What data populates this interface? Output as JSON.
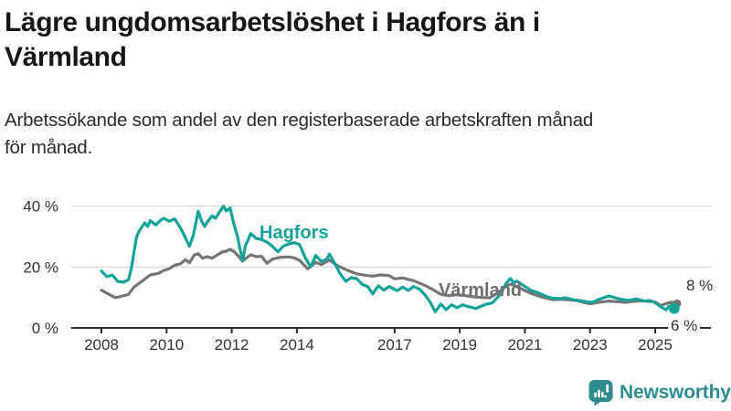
{
  "header": {
    "title_lines": [
      "Lägre ungdomsarbetslöshet i Hagfors än i",
      "Värmland"
    ],
    "subtitle_lines": [
      "Arbetssökande som andel av den registerbaserade arbetskraften månad",
      "för månad."
    ]
  },
  "branding": {
    "logo_text": "Newsworthy",
    "logo_icon": "newsworthy-speech-bubble-bars-icon",
    "logo_color": "#2f8c8e"
  },
  "colors": {
    "hagfors": "#14a396",
    "varmland": "#757575",
    "axis": "#2b2b2b",
    "grid": "#dcdcdc",
    "tick_text": "#333333",
    "title_text": "#161616"
  },
  "chart_data": {
    "type": "line",
    "title": "Lägre ungdomsarbetslöshet i Hagfors än i Värmland",
    "subtitle": "Arbetssökande som andel av den registerbaserade arbetskraften månad för månad.",
    "unit": "%",
    "legend_position": "inline-labels-on-lines",
    "x_axis": {
      "range": [
        2008,
        2025.7
      ],
      "tick_years": [
        2008,
        2010,
        2012,
        2014,
        2017,
        2019,
        2021,
        2023,
        2025
      ],
      "tick_labels": [
        "2008",
        "2010",
        "2012",
        "2014",
        "2017",
        "2019",
        "2021",
        "2023",
        "2025"
      ]
    },
    "y_axis": {
      "range": [
        0,
        42
      ],
      "ticks": [
        0,
        20,
        40
      ],
      "tick_labels": [
        "0 %",
        "20 %",
        "40 %"
      ],
      "grid": true
    },
    "series": [
      {
        "name": "Värmland",
        "color": "#757575",
        "end_label": "8 %",
        "end_value": 8,
        "points": [
          [
            2008.0,
            12.4
          ],
          [
            2008.17,
            11.4
          ],
          [
            2008.42,
            9.9
          ],
          [
            2008.58,
            10.3
          ],
          [
            2008.83,
            11.0
          ],
          [
            2009.0,
            13.4
          ],
          [
            2009.25,
            15.4
          ],
          [
            2009.5,
            17.4
          ],
          [
            2009.75,
            17.9
          ],
          [
            2009.92,
            18.9
          ],
          [
            2010.08,
            19.4
          ],
          [
            2010.25,
            20.6
          ],
          [
            2010.42,
            21.0
          ],
          [
            2010.58,
            22.4
          ],
          [
            2010.7,
            21.4
          ],
          [
            2010.85,
            23.9
          ],
          [
            2010.97,
            24.4
          ],
          [
            2011.1,
            22.9
          ],
          [
            2011.25,
            23.4
          ],
          [
            2011.4,
            22.9
          ],
          [
            2011.55,
            23.9
          ],
          [
            2011.7,
            24.9
          ],
          [
            2011.83,
            25.2
          ],
          [
            2011.95,
            25.8
          ],
          [
            2012.08,
            25.0
          ],
          [
            2012.33,
            22.0
          ],
          [
            2012.58,
            24.0
          ],
          [
            2012.75,
            23.4
          ],
          [
            2012.92,
            23.5
          ],
          [
            2013.08,
            21.2
          ],
          [
            2013.25,
            22.6
          ],
          [
            2013.5,
            23.2
          ],
          [
            2013.75,
            23.3
          ],
          [
            2013.92,
            23.0
          ],
          [
            2014.08,
            22.2
          ],
          [
            2014.33,
            19.4
          ],
          [
            2014.58,
            21.5
          ],
          [
            2014.75,
            20.8
          ],
          [
            2015.0,
            22.3
          ],
          [
            2015.25,
            20.4
          ],
          [
            2015.58,
            18.8
          ],
          [
            2015.83,
            17.8
          ],
          [
            2016.08,
            17.3
          ],
          [
            2016.33,
            17.0
          ],
          [
            2016.58,
            17.4
          ],
          [
            2016.83,
            17.2
          ],
          [
            2017.0,
            16.1
          ],
          [
            2017.25,
            16.4
          ],
          [
            2017.58,
            15.5
          ],
          [
            2017.92,
            14.0
          ],
          [
            2018.17,
            12.6
          ],
          [
            2018.42,
            11.0
          ],
          [
            2018.67,
            10.6
          ],
          [
            2018.92,
            10.9
          ],
          [
            2019.17,
            10.6
          ],
          [
            2019.42,
            10.2
          ],
          [
            2019.67,
            10.0
          ],
          [
            2019.92,
            9.9
          ],
          [
            2020.17,
            11.5
          ],
          [
            2020.42,
            13.8
          ],
          [
            2020.58,
            14.4
          ],
          [
            2020.83,
            13.2
          ],
          [
            2021.0,
            12.2
          ],
          [
            2021.25,
            11.1
          ],
          [
            2021.5,
            10.2
          ],
          [
            2021.83,
            9.3
          ],
          [
            2022.08,
            9.4
          ],
          [
            2022.33,
            9.2
          ],
          [
            2022.58,
            9.0
          ],
          [
            2022.83,
            8.3
          ],
          [
            2023.0,
            7.9
          ],
          [
            2023.25,
            8.4
          ],
          [
            2023.58,
            8.8
          ],
          [
            2023.83,
            8.6
          ],
          [
            2024.08,
            8.4
          ],
          [
            2024.33,
            8.7
          ],
          [
            2024.58,
            8.9
          ],
          [
            2024.83,
            8.7
          ],
          [
            2025.0,
            8.5
          ],
          [
            2025.17,
            7.3
          ],
          [
            2025.33,
            8.0
          ],
          [
            2025.5,
            8.4
          ],
          [
            2025.67,
            8.0
          ]
        ]
      },
      {
        "name": "Hagfors",
        "color": "#14a396",
        "end_label": "6 %",
        "end_value": 6,
        "points": [
          [
            2008.0,
            18.7
          ],
          [
            2008.17,
            16.8
          ],
          [
            2008.33,
            17.4
          ],
          [
            2008.5,
            15.3
          ],
          [
            2008.67,
            15.0
          ],
          [
            2008.83,
            15.8
          ],
          [
            2008.92,
            19.5
          ],
          [
            2009.0,
            25.0
          ],
          [
            2009.08,
            30.0
          ],
          [
            2009.17,
            32.0
          ],
          [
            2009.33,
            34.5
          ],
          [
            2009.42,
            33.3
          ],
          [
            2009.5,
            35.2
          ],
          [
            2009.67,
            33.8
          ],
          [
            2009.83,
            35.5
          ],
          [
            2009.92,
            36.0
          ],
          [
            2010.08,
            35.0
          ],
          [
            2010.25,
            35.8
          ],
          [
            2010.42,
            33.0
          ],
          [
            2010.58,
            29.5
          ],
          [
            2010.7,
            26.8
          ],
          [
            2010.83,
            30.8
          ],
          [
            2010.97,
            38.3
          ],
          [
            2011.08,
            35.0
          ],
          [
            2011.17,
            33.3
          ],
          [
            2011.25,
            34.8
          ],
          [
            2011.4,
            36.8
          ],
          [
            2011.5,
            36.0
          ],
          [
            2011.62,
            38.0
          ],
          [
            2011.75,
            40.0
          ],
          [
            2011.83,
            38.4
          ],
          [
            2011.95,
            39.4
          ],
          [
            2012.08,
            33.5
          ],
          [
            2012.17,
            30.3
          ],
          [
            2012.33,
            22.0
          ],
          [
            2012.42,
            27.0
          ],
          [
            2012.5,
            28.8
          ],
          [
            2012.58,
            31.0
          ],
          [
            2012.75,
            29.4
          ],
          [
            2012.92,
            29.0
          ],
          [
            2013.08,
            28.2
          ],
          [
            2013.25,
            26.8
          ],
          [
            2013.42,
            25.0
          ],
          [
            2013.58,
            26.8
          ],
          [
            2013.75,
            27.6
          ],
          [
            2013.92,
            28.0
          ],
          [
            2014.08,
            27.4
          ],
          [
            2014.25,
            23.2
          ],
          [
            2014.42,
            20.0
          ],
          [
            2014.58,
            23.8
          ],
          [
            2014.75,
            21.8
          ],
          [
            2014.92,
            22.6
          ],
          [
            2015.0,
            24.3
          ],
          [
            2015.17,
            21.0
          ],
          [
            2015.33,
            17.8
          ],
          [
            2015.5,
            15.3
          ],
          [
            2015.67,
            16.5
          ],
          [
            2015.83,
            16.2
          ],
          [
            2016.0,
            14.3
          ],
          [
            2016.17,
            13.6
          ],
          [
            2016.33,
            11.2
          ],
          [
            2016.5,
            13.8
          ],
          [
            2016.67,
            12.4
          ],
          [
            2016.83,
            13.6
          ],
          [
            2017.08,
            12.2
          ],
          [
            2017.25,
            13.4
          ],
          [
            2017.42,
            12.3
          ],
          [
            2017.58,
            13.6
          ],
          [
            2017.75,
            12.8
          ],
          [
            2017.92,
            11.0
          ],
          [
            2018.08,
            8.6
          ],
          [
            2018.25,
            5.3
          ],
          [
            2018.42,
            7.8
          ],
          [
            2018.58,
            6.0
          ],
          [
            2018.75,
            7.6
          ],
          [
            2018.92,
            6.6
          ],
          [
            2019.08,
            7.6
          ],
          [
            2019.25,
            7.0
          ],
          [
            2019.5,
            6.4
          ],
          [
            2019.67,
            7.2
          ],
          [
            2019.83,
            7.8
          ],
          [
            2020.0,
            8.2
          ],
          [
            2020.25,
            11.0
          ],
          [
            2020.42,
            14.6
          ],
          [
            2020.55,
            16.2
          ],
          [
            2020.67,
            14.8
          ],
          [
            2020.75,
            15.4
          ],
          [
            2020.92,
            14.2
          ],
          [
            2021.0,
            13.6
          ],
          [
            2021.17,
            12.4
          ],
          [
            2021.42,
            11.5
          ],
          [
            2021.67,
            10.3
          ],
          [
            2021.83,
            9.8
          ],
          [
            2022.08,
            9.6
          ],
          [
            2022.25,
            9.9
          ],
          [
            2022.5,
            9.2
          ],
          [
            2022.75,
            8.9
          ],
          [
            2022.92,
            8.5
          ],
          [
            2023.08,
            8.4
          ],
          [
            2023.25,
            9.3
          ],
          [
            2023.42,
            9.9
          ],
          [
            2023.58,
            10.5
          ],
          [
            2023.83,
            9.7
          ],
          [
            2024.0,
            9.3
          ],
          [
            2024.17,
            9.0
          ],
          [
            2024.42,
            9.5
          ],
          [
            2024.67,
            8.8
          ],
          [
            2024.83,
            9.0
          ],
          [
            2025.0,
            8.3
          ],
          [
            2025.17,
            6.9
          ],
          [
            2025.33,
            5.9
          ],
          [
            2025.42,
            7.1
          ],
          [
            2025.5,
            5.6
          ],
          [
            2025.58,
            6.4
          ]
        ]
      }
    ]
  }
}
